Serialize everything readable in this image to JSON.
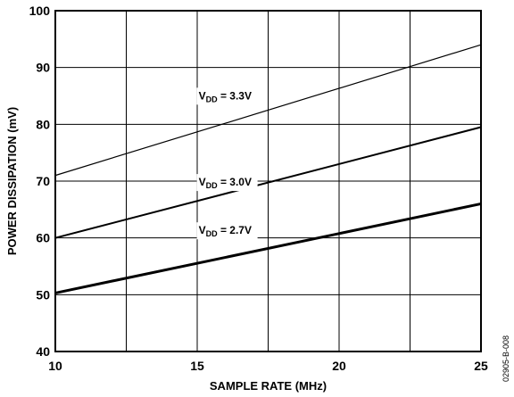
{
  "chart_data": {
    "type": "line",
    "title": "",
    "xlabel": "SAMPLE RATE (MHz)",
    "ylabel": "POWER DISSIPATION (mV)",
    "xlim": [
      10,
      25
    ],
    "ylim": [
      40,
      100
    ],
    "x_ticks": [
      10,
      15,
      20,
      25
    ],
    "x_tick_labels": [
      "10",
      "15",
      "20",
      "25"
    ],
    "y_ticks": [
      40,
      50,
      60,
      70,
      80,
      90,
      100
    ],
    "y_tick_labels": [
      "40",
      "50",
      "60",
      "70",
      "80",
      "90",
      "100"
    ],
    "grid": true,
    "legend": "none",
    "series": [
      {
        "label_main": "V",
        "label_sub": "DD",
        "label_rest": " = 3.3V",
        "x": [
          10,
          25
        ],
        "y": [
          71,
          94
        ],
        "label_x": 17.0,
        "label_y": 84.4
      },
      {
        "label_main": "V",
        "label_sub": "DD",
        "label_rest": " = 3.0V",
        "x": [
          10,
          25
        ],
        "y": [
          60,
          79.5
        ],
        "label_x": 17.0,
        "label_y": 69.2
      },
      {
        "label_main": "V",
        "label_sub": "DD",
        "label_rest": " = 2.7V",
        "x": [
          10,
          25
        ],
        "y": [
          50.3,
          66
        ],
        "label_x": 17.0,
        "label_y": 60.7
      }
    ],
    "series_colors": [
      "#000000",
      "#000000",
      "#000000"
    ],
    "figure_id": "02905-B-008"
  }
}
